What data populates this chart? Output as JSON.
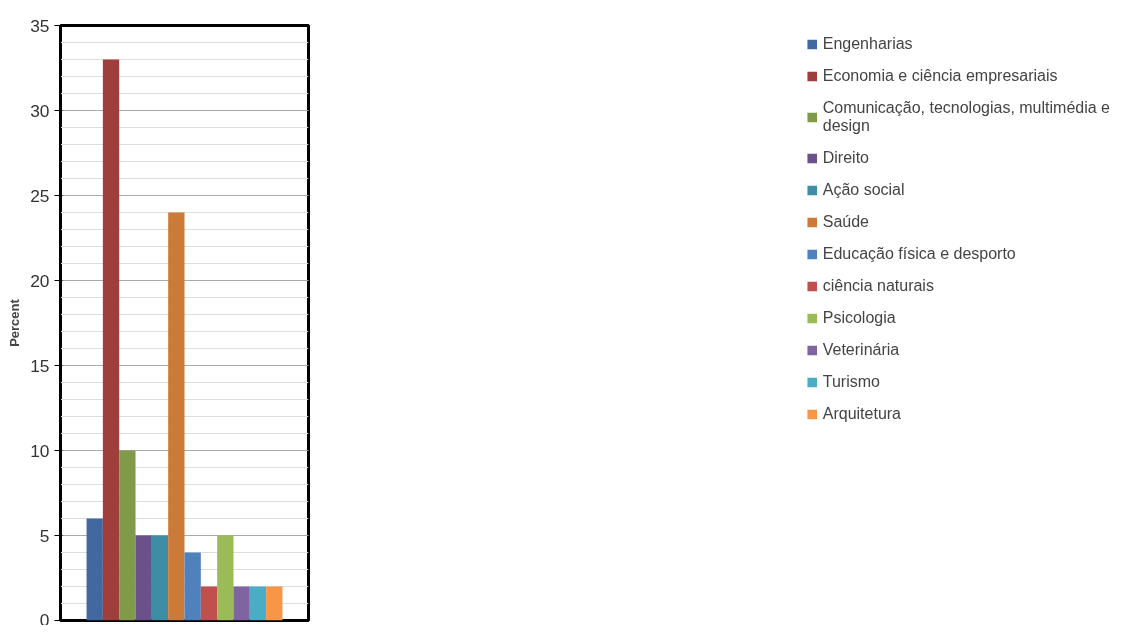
{
  "chart_data": {
    "type": "bar",
    "ylabel": "Percent",
    "categories": [
      null
    ],
    "ylim": [
      0,
      35
    ],
    "yticks": [
      0,
      5,
      10,
      15,
      20,
      25,
      30,
      35
    ],
    "grid": "y",
    "legend": "right",
    "tick_labels": "y",
    "series": [
      {
        "name": "Engenharias",
        "color": "#4169a0",
        "values": [
          6
        ]
      },
      {
        "name": "Economia e ciência empresariais",
        "color": "#9e3f3c",
        "values": [
          33
        ]
      },
      {
        "name": "Comunicação, tecnologias, multimédia e design",
        "color": "#809a4a",
        "values": [
          10
        ]
      },
      {
        "name": "Direito",
        "color": "#6b5189",
        "values": [
          5
        ]
      },
      {
        "name": "Ação social",
        "color": "#3d8ea4",
        "values": [
          5
        ]
      },
      {
        "name": "Saúde",
        "color": "#cb7a38",
        "values": [
          24
        ]
      },
      {
        "name": "Educação física e desporto",
        "color": "#4f81bd",
        "values": [
          4
        ]
      },
      {
        "name": "ciência naturais",
        "color": "#c0504d",
        "values": [
          2
        ]
      },
      {
        "name": "Psicologia",
        "color": "#9bbb59",
        "values": [
          5
        ]
      },
      {
        "name": "Veterinária",
        "color": "#8064a2",
        "values": [
          2
        ]
      },
      {
        "name": "Turismo",
        "color": "#4bacc6",
        "values": [
          2
        ]
      },
      {
        "name": "Arquitetura",
        "color": "#f79646",
        "values": [
          2
        ]
      }
    ]
  }
}
